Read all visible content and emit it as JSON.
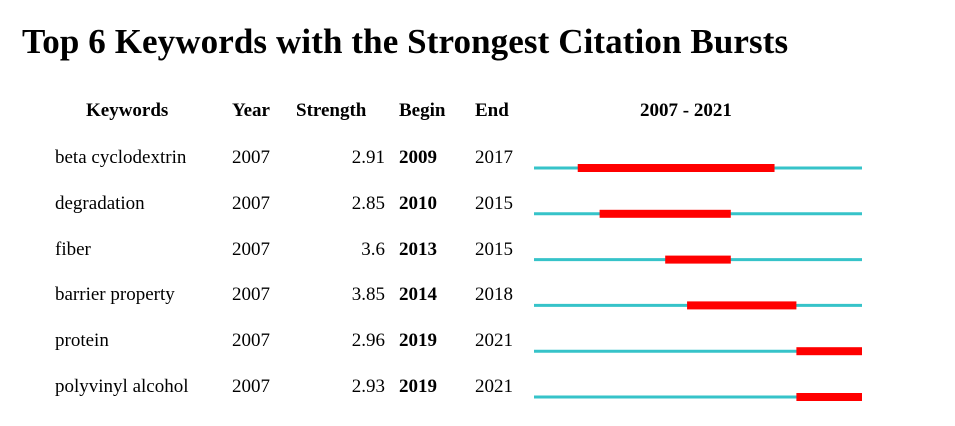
{
  "chart_data": {
    "type": "table",
    "title": "Top 6 Keywords with the Strongest Citation Bursts",
    "columns": [
      "Keywords",
      "Year",
      "Strength",
      "Begin",
      "End",
      "2007 - 2021"
    ],
    "range": [
      2007,
      2021
    ],
    "colors": {
      "timeline": "#36c3c9",
      "burst": "#ff0000"
    },
    "rows": [
      {
        "keyword": "beta cyclodextrin",
        "year": "2007",
        "strength": "2.91",
        "begin": "2009",
        "end": "2017"
      },
      {
        "keyword": "degradation",
        "year": "2007",
        "strength": "2.85",
        "begin": "2010",
        "end": "2015"
      },
      {
        "keyword": "fiber",
        "year": "2007",
        "strength": "3.6",
        "begin": "2013",
        "end": "2015"
      },
      {
        "keyword": "barrier property",
        "year": "2007",
        "strength": "3.85",
        "begin": "2014",
        "end": "2018"
      },
      {
        "keyword": "protein",
        "year": "2007",
        "strength": "2.96",
        "begin": "2019",
        "end": "2021"
      },
      {
        "keyword": "polyvinyl alcohol",
        "year": "2007",
        "strength": "2.93",
        "begin": "2019",
        "end": "2021"
      }
    ]
  }
}
